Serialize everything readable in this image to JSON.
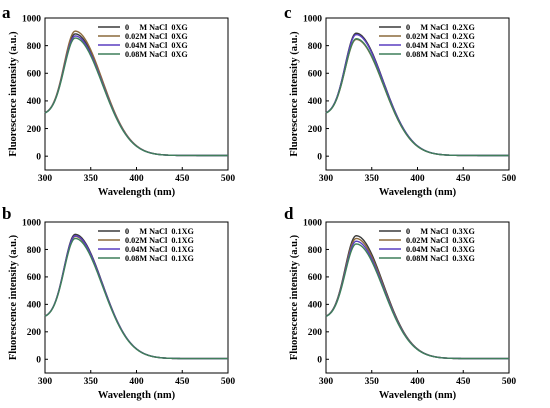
{
  "chart_data": [
    {
      "panel": "a",
      "type": "line",
      "xlabel": "Wavelength (nm)",
      "ylabel": "Fluorescence intensity (a.u.)",
      "xlim": [
        300,
        500
      ],
      "ylim": [
        -100,
        1000
      ],
      "xticks": [
        300,
        350,
        400,
        450,
        500
      ],
      "yticks": [
        0,
        200,
        400,
        600,
        800,
        1000
      ],
      "legend_position": "top-right",
      "series": [
        {
          "name": "0     M NaCl  0XG",
          "color": "#3a3a3a",
          "peak": 885
        },
        {
          "name": "0.02M NaCl  0XG",
          "color": "#8c6a3c",
          "peak": 905
        },
        {
          "name": "0.04M NaCl  0XG",
          "color": "#5a3fc0",
          "peak": 870
        },
        {
          "name": "0.08M NaCl  0XG",
          "color": "#3f7f5a",
          "peak": 855
        }
      ],
      "shape": {
        "start_value": 300,
        "peak_x": 333,
        "tail_value": 5
      }
    },
    {
      "panel": "c",
      "type": "line",
      "xlabel": "Wavelength (nm)",
      "ylabel": "Fluorescence intensity (a.u.)",
      "xlim": [
        300,
        500
      ],
      "ylim": [
        -100,
        1000
      ],
      "xticks": [
        300,
        350,
        400,
        450,
        500
      ],
      "yticks": [
        0,
        200,
        400,
        600,
        800,
        1000
      ],
      "legend_position": "top-right",
      "series": [
        {
          "name": "0     M NaCl  0.2XG",
          "color": "#3a3a3a",
          "peak": 890
        },
        {
          "name": "0.02M NaCl  0.2XG",
          "color": "#8c6a3c",
          "peak": 845
        },
        {
          "name": "0.04M NaCl  0.2XG",
          "color": "#5a3fc0",
          "peak": 880
        },
        {
          "name": "0.08M NaCl  0.2XG",
          "color": "#3f7f5a",
          "peak": 850
        }
      ],
      "shape": {
        "start_value": 300,
        "peak_x": 333,
        "tail_value": 5
      }
    },
    {
      "panel": "b",
      "type": "line",
      "xlabel": "Wavelength (nm)",
      "ylabel": "Fluorescence intensity (a.u.)",
      "xlim": [
        300,
        500
      ],
      "ylim": [
        -100,
        1000
      ],
      "xticks": [
        300,
        350,
        400,
        450,
        500
      ],
      "yticks": [
        0,
        200,
        400,
        600,
        800,
        1000
      ],
      "legend_position": "top-right",
      "series": [
        {
          "name": "0     M NaCl  0.1XG",
          "color": "#3a3a3a",
          "peak": 910
        },
        {
          "name": "0.02M NaCl  0.1XG",
          "color": "#8c6a3c",
          "peak": 895
        },
        {
          "name": "0.04M NaCl  0.1XG",
          "color": "#5a3fc0",
          "peak": 900
        },
        {
          "name": "0.08M NaCl  0.1XG",
          "color": "#3f7f5a",
          "peak": 880
        }
      ],
      "shape": {
        "start_value": 300,
        "peak_x": 333,
        "tail_value": 5
      }
    },
    {
      "panel": "d",
      "type": "line",
      "xlabel": "Wavelength (nm)",
      "ylabel": "Fluorescence intensity (a.u.)",
      "xlim": [
        300,
        500
      ],
      "ylim": [
        -100,
        1000
      ],
      "xticks": [
        300,
        350,
        400,
        450,
        500
      ],
      "yticks": [
        0,
        200,
        400,
        600,
        800,
        1000
      ],
      "legend_position": "top-right",
      "series": [
        {
          "name": "0     M NaCl  0.3XG",
          "color": "#3a3a3a",
          "peak": 900
        },
        {
          "name": "0.02M NaCl  0.3XG",
          "color": "#8c6a3c",
          "peak": 880
        },
        {
          "name": "0.04M NaCl  0.3XG",
          "color": "#5a3fc0",
          "peak": 860
        },
        {
          "name": "0.08M NaCl  0.3XG",
          "color": "#3f7f5a",
          "peak": 840
        }
      ],
      "shape": {
        "start_value": 300,
        "peak_x": 333,
        "tail_value": 5
      }
    }
  ]
}
